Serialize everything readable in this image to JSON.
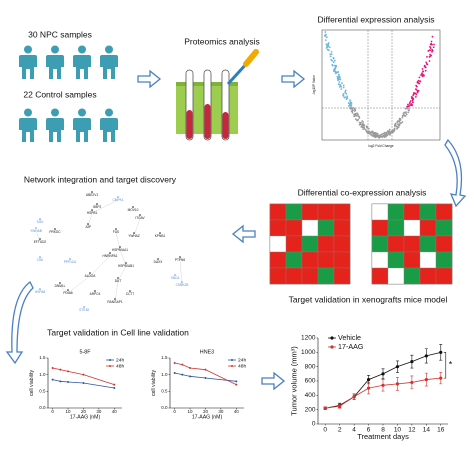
{
  "labels": {
    "npc": "30 NPC samples",
    "control": "22 Control samples",
    "proteomics": "Proteomics analysis",
    "diffexp": "Differential expression analysis",
    "network": "Network integration and target discovery",
    "coexp": "Differential co-expression analysis",
    "xenograft": "Target validation in xenografts mice model",
    "cellline": "Target validation in Cell line validation"
  },
  "volcano": {
    "ylabel": "-log10P Value",
    "xlabel": "log2 Fold Change"
  },
  "network": {
    "nodes": [
      {
        "label": "UBE2V1",
        "color": "#111111"
      },
      {
        "label": "CMPK1",
        "color": "#5b8fd6"
      },
      {
        "label": "GBP2",
        "color": "#111111"
      },
      {
        "label": "HSPB1",
        "color": "#111111"
      },
      {
        "label": "MOV10",
        "color": "#111111"
      },
      {
        "label": "ITGAV",
        "color": "#111111"
      },
      {
        "label": "SGK",
        "color": "#5b8fd6"
      },
      {
        "label": "YWHAB",
        "color": "#5b8fd6"
      },
      {
        "label": "PRKDC",
        "color": "#111111"
      },
      {
        "label": "JUP",
        "color": "#111111"
      },
      {
        "label": "FUS",
        "color": "#111111"
      },
      {
        "label": "YWHAZ",
        "color": "#111111"
      },
      {
        "label": "KPNB1",
        "color": "#111111"
      },
      {
        "label": "EFTUD2",
        "color": "#111111"
      },
      {
        "label": "HSP90AA1",
        "color": "#111111"
      },
      {
        "label": "HNRNPA1",
        "color": "#111111"
      },
      {
        "label": "CSK",
        "color": "#5b8fd6"
      },
      {
        "label": "PPP1CA",
        "color": "#5b8fd6"
      },
      {
        "label": "HSP90AB1",
        "color": "#111111"
      },
      {
        "label": "DAXX",
        "color": "#111111"
      },
      {
        "label": "PTPN6",
        "color": "#111111"
      },
      {
        "label": "ALDOA",
        "color": "#111111"
      },
      {
        "label": "DUT",
        "color": "#111111"
      },
      {
        "label": "SNCA",
        "color": "#5b8fd6"
      },
      {
        "label": "CSNK2B",
        "color": "#5b8fd6"
      },
      {
        "label": "DNM1L",
        "color": "#111111"
      },
      {
        "label": "HSPA8",
        "color": "#5b8fd6"
      },
      {
        "label": "PDIA6",
        "color": "#111111"
      },
      {
        "label": "ARPC4",
        "color": "#111111"
      },
      {
        "label": "CCT7",
        "color": "#111111"
      },
      {
        "label": "RANGAP1",
        "color": "#111111"
      },
      {
        "label": "STK38",
        "color": "#5b8fd6"
      }
    ]
  },
  "heatmaps": [
    {
      "cells": [
        [
          "#e3231c",
          "#1a9c47",
          "#e3231c",
          "#e3231c",
          "#e3231c"
        ],
        [
          "#e3231c",
          "#e3231c",
          "#ffffff",
          "#1a9c47",
          "#e3231c"
        ],
        [
          "#ffffff",
          "#e3231c",
          "#1a9c47",
          "#e3231c",
          "#e3231c"
        ],
        [
          "#e3231c",
          "#1a9c47",
          "#e3231c",
          "#e3231c",
          "#e3231c"
        ],
        [
          "#e3231c",
          "#e3231c",
          "#e3231c",
          "#1a9c47",
          "#e3231c"
        ]
      ]
    },
    {
      "cells": [
        [
          "#ffffff",
          "#1a9c47",
          "#e3231c",
          "#1a9c47",
          "#e3231c"
        ],
        [
          "#e3231c",
          "#1a9c47",
          "#ffffff",
          "#e3231c",
          "#1a9c47"
        ],
        [
          "#1a9c47",
          "#e3231c",
          "#e3231c",
          "#1a9c47",
          "#e3231c"
        ],
        [
          "#ffffff",
          "#1a9c47",
          "#e3231c",
          "#ffffff",
          "#1a9c47"
        ],
        [
          "#e3231c",
          "#ffffff",
          "#1a9c47",
          "#e3231c",
          "#e3231c"
        ]
      ]
    }
  ],
  "chart_data": [
    {
      "type": "line",
      "title": "5-8F",
      "xlabel": "17-AAG (nM)",
      "ylabel": "cell viability",
      "x": [
        0,
        5,
        10,
        20,
        40
      ],
      "xlim": [
        -3,
        45
      ],
      "xticks": [
        0,
        10,
        20,
        30,
        40
      ],
      "ylim": [
        0,
        1.5
      ],
      "yticks": [
        {
          "value": 0,
          "label": "0.0"
        },
        {
          "value": 0.5,
          "label": "0.5"
        },
        {
          "value": 1,
          "label": "1.0"
        },
        {
          "value": 1.5,
          "label": "1.5"
        }
      ],
      "series": [
        {
          "name": "24h",
          "color": "#2b55a3",
          "values": [
            0.85,
            0.8,
            0.78,
            0.75,
            0.6
          ]
        },
        {
          "name": "48h",
          "color": "#d2322d",
          "values": [
            1.2,
            1.15,
            1.1,
            1.0,
            0.7
          ]
        }
      ]
    },
    {
      "type": "line",
      "title": "HNE3",
      "xlabel": "17-AAG (nM)",
      "ylabel": "cell viability",
      "x": [
        0,
        5,
        10,
        20,
        40
      ],
      "xlim": [
        -3,
        45
      ],
      "xticks": [
        0,
        10,
        20,
        30,
        40
      ],
      "ylim": [
        0,
        1.5
      ],
      "yticks": [
        {
          "value": 0,
          "label": "0.0"
        },
        {
          "value": 0.5,
          "label": "0.5"
        },
        {
          "value": 1,
          "label": "1.0"
        },
        {
          "value": 1.5,
          "label": "1.5"
        }
      ],
      "series": [
        {
          "name": "24h",
          "color": "#2b55a3",
          "values": [
            1.05,
            1.0,
            0.95,
            0.9,
            0.8
          ]
        },
        {
          "name": "48h",
          "color": "#d2322d",
          "values": [
            1.35,
            1.3,
            1.2,
            1.15,
            0.7
          ]
        }
      ]
    },
    {
      "type": "errorline",
      "xlabel": "Treatment days",
      "ylabel": "Tumor volume (mm³)",
      "annotation": "*",
      "x": [
        0,
        2,
        4,
        6,
        8,
        10,
        12,
        14,
        16
      ],
      "xlim": [
        -1,
        17
      ],
      "xticks": [
        0,
        2,
        4,
        6,
        8,
        10,
        12,
        14,
        16
      ],
      "ylim": [
        0,
        1200
      ],
      "yticks": [
        0,
        200,
        400,
        600,
        800,
        1000,
        1200
      ],
      "series": [
        {
          "name": "Vehicle",
          "color": "#111111",
          "values": [
            220,
            260,
            380,
            620,
            700,
            800,
            870,
            950,
            1000
          ],
          "errors": [
            20,
            30,
            40,
            60,
            70,
            80,
            90,
            100,
            110
          ]
        },
        {
          "name": "17-AAG",
          "color": "#d2322d",
          "values": [
            220,
            250,
            380,
            500,
            540,
            560,
            580,
            620,
            640
          ],
          "errors": [
            20,
            30,
            40,
            80,
            80,
            90,
            90,
            90,
            80
          ]
        }
      ]
    }
  ]
}
